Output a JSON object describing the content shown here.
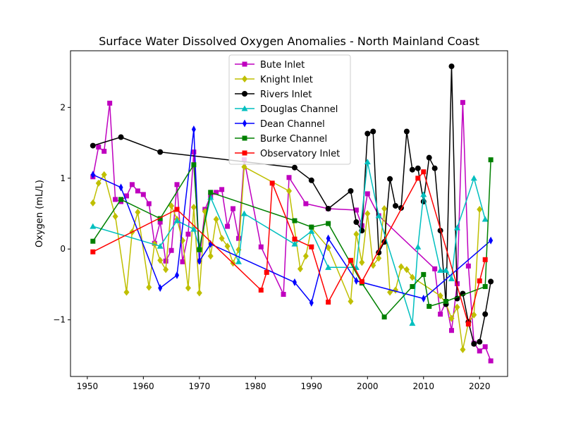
{
  "chart_data": {
    "type": "line",
    "title": "Surface Water Dissolved Oxygen Anomalies - North Mainland Coast",
    "xlabel": "",
    "ylabel": "Oxygen (mL/L)",
    "xlim": [
      1947,
      2025
    ],
    "ylim": [
      -1.8,
      2.8
    ],
    "xticks": [
      1950,
      1960,
      1970,
      1980,
      1990,
      2000,
      2010,
      2020
    ],
    "yticks": [
      -1,
      0,
      1,
      2
    ],
    "ytick_labels": [
      "−1",
      "0",
      "1",
      "2"
    ],
    "legend_position": "upper-center",
    "grid": false,
    "series": [
      {
        "name": "Bute Inlet",
        "color": "#bf00bf",
        "marker": "square",
        "x": [
          1951,
          1952,
          1953,
          1954,
          1955,
          1956,
          1957,
          1958,
          1959,
          1960,
          1961,
          1962,
          1963,
          1964,
          1965,
          1966,
          1967,
          1968,
          1969,
          1970,
          1971,
          1972,
          1973,
          1974,
          1975,
          1976,
          1977,
          1978,
          1981,
          1985,
          1986,
          1989,
          1993,
          1998,
          1999,
          2000,
          2002,
          2012,
          2013,
          2014,
          2015,
          2016,
          2017,
          2018,
          2019,
          2020,
          2021,
          2022
        ],
        "y": [
          1.02,
          1.44,
          1.38,
          2.06,
          0.7,
          0.67,
          0.75,
          0.91,
          0.82,
          0.77,
          0.64,
          0.08,
          0.38,
          -0.17,
          -0.02,
          0.91,
          -0.18,
          0.21,
          1.37,
          -0.17,
          0.56,
          0.75,
          0.8,
          0.84,
          0.32,
          0.57,
          0.15,
          1.26,
          0.03,
          -0.64,
          1.01,
          0.64,
          0.57,
          0.55,
          0.33,
          0.78,
          0.47,
          -0.28,
          -0.92,
          -0.75,
          -1.15,
          -0.49,
          2.07,
          -0.24,
          -1.33,
          -1.44,
          -1.38,
          -1.58
        ]
      },
      {
        "name": "Knight Inlet",
        "color": "#bfbf00",
        "marker": "diamond",
        "x": [
          1951,
          1952,
          1953,
          1955,
          1957,
          1958,
          1959,
          1961,
          1962,
          1963,
          1964,
          1965,
          1966,
          1967,
          1968,
          1969,
          1970,
          1971,
          1972,
          1973,
          1974,
          1975,
          1976,
          1977,
          1978,
          1986,
          1988,
          1989,
          1990,
          1993,
          1997,
          1998,
          1999,
          2000,
          2001,
          2002,
          2003,
          2004,
          2005,
          2006,
          2007,
          2008,
          2013,
          2014,
          2015,
          2016,
          2017,
          2018,
          2019,
          2020
        ],
        "y": [
          0.65,
          0.93,
          1.05,
          0.46,
          -0.61,
          0.24,
          0.52,
          -0.54,
          0.07,
          -0.16,
          -0.29,
          0.61,
          0.42,
          0.12,
          -0.55,
          0.59,
          -0.62,
          0.53,
          -0.1,
          0.42,
          0.15,
          0.04,
          -0.2,
          -0.01,
          1.16,
          0.82,
          -0.28,
          -0.1,
          0.3,
          0.02,
          -0.74,
          0.21,
          -0.19,
          0.5,
          -0.23,
          -0.13,
          0.57,
          -0.61,
          -0.58,
          -0.25,
          -0.29,
          -0.4,
          -0.66,
          -0.77,
          -0.98,
          -0.82,
          -1.42,
          -1.04,
          -0.93,
          0.56
        ]
      },
      {
        "name": "Rivers Inlet",
        "color": "#000000",
        "marker": "circle",
        "x": [
          1951,
          1956,
          1963,
          1987,
          1990,
          1993,
          1997,
          1998,
          1999,
          2000,
          2001,
          2002,
          2003,
          2004,
          2005,
          2006,
          2007,
          2008,
          2009,
          2010,
          2011,
          2012,
          2013,
          2014,
          2015,
          2016,
          2017,
          2018,
          2019,
          2020,
          2021,
          2022
        ],
        "y": [
          1.46,
          1.58,
          1.37,
          1.15,
          0.97,
          0.57,
          0.82,
          0.38,
          0.26,
          1.63,
          1.66,
          -0.05,
          0.1,
          0.99,
          0.61,
          0.58,
          1.66,
          1.12,
          1.14,
          0.67,
          1.29,
          1.14,
          0.26,
          -0.78,
          2.58,
          -0.7,
          -0.63,
          -1.03,
          -1.34,
          -1.31,
          -0.92,
          -0.46
        ]
      },
      {
        "name": "Douglas Channel",
        "color": "#00bfbf",
        "marker": "triangle",
        "x": [
          1951,
          1963,
          1966,
          1969,
          1970,
          1972,
          1977,
          1978,
          1987,
          1990,
          1993,
          1998,
          2000,
          2002,
          2008,
          2009,
          2010,
          2013,
          2014,
          2015,
          2016,
          2019,
          2021
        ],
        "y": [
          0.32,
          0.04,
          0.4,
          0.28,
          0.03,
          0.73,
          -0.18,
          0.5,
          0.07,
          0.25,
          -0.26,
          -0.26,
          1.23,
          0.47,
          -1.05,
          0.03,
          0.77,
          -0.3,
          -0.3,
          -0.42,
          0.3,
          1.0,
          0.42
        ]
      },
      {
        "name": "Dean Channel",
        "color": "#0000ff",
        "marker": "thin-diamond",
        "x": [
          1951,
          1956,
          1963,
          1966,
          1969,
          1970,
          1972,
          1987,
          1990,
          1993,
          1998,
          2010,
          2022
        ],
        "y": [
          1.05,
          0.87,
          -0.55,
          -0.37,
          1.69,
          -0.17,
          0.07,
          -0.47,
          -0.76,
          0.15,
          -0.45,
          -0.7,
          0.12
        ]
      },
      {
        "name": "Burke Channel",
        "color": "#008000",
        "marker": "square",
        "x": [
          1951,
          1956,
          1963,
          1969,
          1970,
          1972,
          1987,
          1990,
          1993,
          1999,
          2003,
          2008,
          2010,
          2011,
          2014,
          2021,
          2022
        ],
        "y": [
          0.11,
          0.7,
          0.43,
          1.19,
          -0.01,
          0.8,
          0.4,
          0.31,
          0.36,
          -0.48,
          -0.96,
          -0.53,
          -0.36,
          -0.81,
          -0.74,
          -0.53,
          1.26
        ]
      },
      {
        "name": "Observatory Inlet",
        "color": "#ff0000",
        "marker": "square",
        "x": [
          1951,
          1966,
          1981,
          1982,
          1983,
          1987,
          1990,
          1993,
          1997,
          1999,
          2009,
          2010,
          2018,
          2020,
          2021
        ],
        "y": [
          -0.04,
          0.56,
          -0.58,
          -0.33,
          0.93,
          0.14,
          0.03,
          -0.75,
          -0.16,
          -0.46,
          1.0,
          1.09,
          -1.06,
          -0.45,
          -0.15
        ]
      }
    ]
  }
}
